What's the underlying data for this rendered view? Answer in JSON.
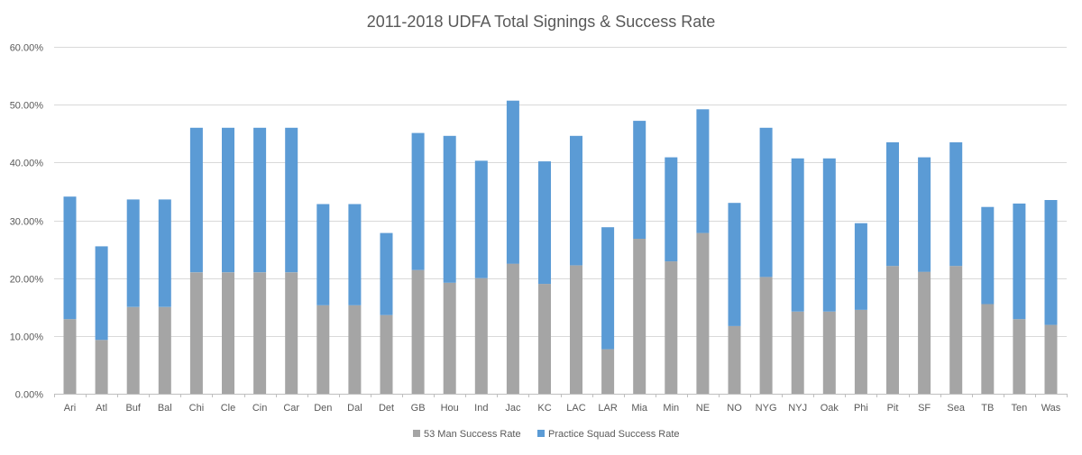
{
  "chart_data": {
    "type": "bar",
    "stacked": true,
    "title": "2011-2018 UDFA Total Signings & Success Rate",
    "xlabel": "",
    "ylabel": "",
    "ylim": [
      0,
      0.6
    ],
    "y_ticks": [
      "0.00%",
      "10.00%",
      "20.00%",
      "30.00%",
      "40.00%",
      "50.00%",
      "60.00%"
    ],
    "y_tick_values": [
      0,
      0.1,
      0.2,
      0.3,
      0.4,
      0.5,
      0.6
    ],
    "grid": true,
    "legend_position": "bottom",
    "categories": [
      "Ari",
      "Atl",
      "Buf",
      "Bal",
      "Chi",
      "Cle",
      "Cin",
      "Car",
      "Den",
      "Dal",
      "Det",
      "GB",
      "Hou",
      "Ind",
      "Jac",
      "KC",
      "LAC",
      "LAR",
      "Mia",
      "Min",
      "NE",
      "NO",
      "NYG",
      "NYJ",
      "Oak",
      "Phi",
      "Pit",
      "SF",
      "Sea",
      "TB",
      "Ten",
      "Was"
    ],
    "series": [
      {
        "name": "53 Man Success Rate",
        "color": "#a5a5a5",
        "values": [
          0.129,
          0.093,
          0.15,
          0.15,
          0.21,
          0.21,
          0.21,
          0.21,
          0.153,
          0.153,
          0.136,
          0.214,
          0.192,
          0.2,
          0.225,
          0.19,
          0.222,
          0.077,
          0.268,
          0.229,
          0.278,
          0.117,
          0.202,
          0.142,
          0.142,
          0.145,
          0.221,
          0.211,
          0.221,
          0.155,
          0.129,
          0.119
        ]
      },
      {
        "name": "Practice Squad Success Rate",
        "color": "#5b9bd5",
        "values": [
          0.212,
          0.162,
          0.186,
          0.186,
          0.25,
          0.25,
          0.25,
          0.25,
          0.175,
          0.175,
          0.142,
          0.237,
          0.254,
          0.203,
          0.282,
          0.212,
          0.224,
          0.211,
          0.204,
          0.18,
          0.214,
          0.213,
          0.258,
          0.265,
          0.265,
          0.15,
          0.214,
          0.198,
          0.214,
          0.168,
          0.2,
          0.216
        ]
      }
    ]
  }
}
